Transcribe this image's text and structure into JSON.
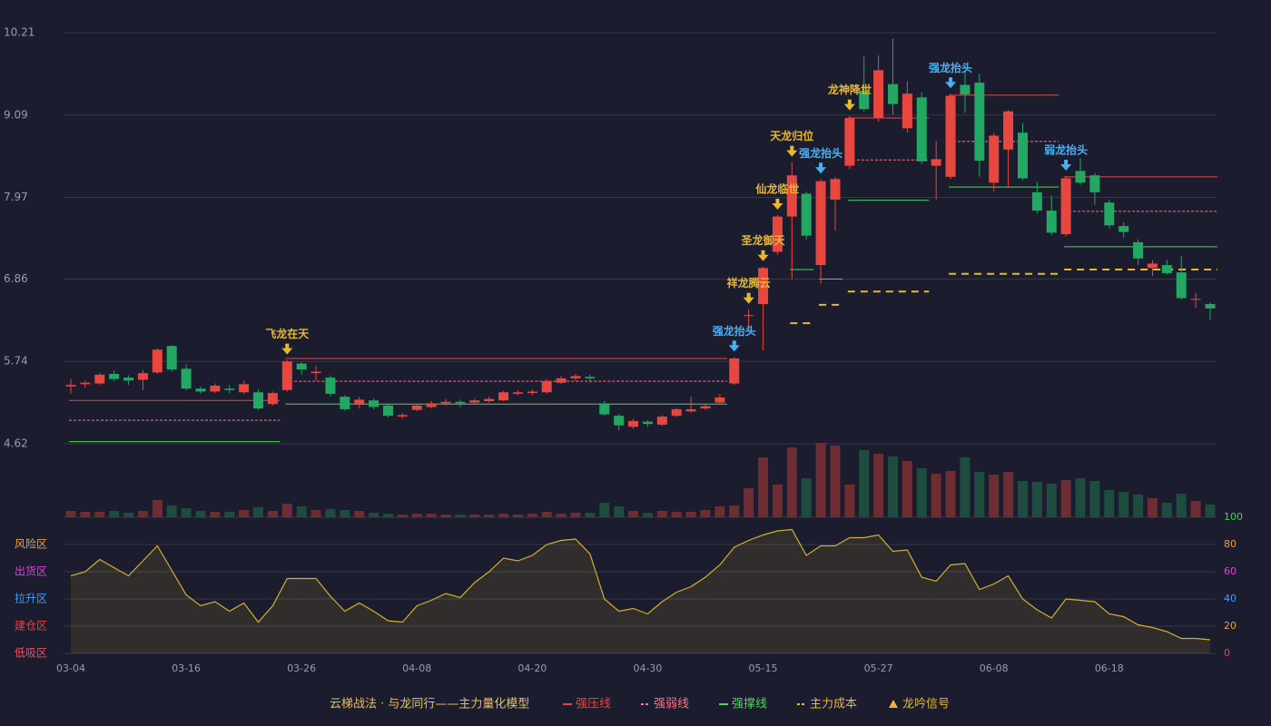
{
  "chart_data": {
    "type": "candlestick",
    "categories": [
      "03-04",
      null,
      null,
      null,
      null,
      null,
      null,
      null,
      "03-16",
      null,
      null,
      null,
      null,
      null,
      null,
      null,
      "03-26",
      null,
      null,
      null,
      null,
      null,
      null,
      null,
      "04-08",
      null,
      null,
      null,
      null,
      null,
      null,
      null,
      "04-20",
      null,
      null,
      null,
      null,
      null,
      null,
      null,
      "04-30",
      null,
      null,
      null,
      null,
      null,
      null,
      null,
      "05-15",
      null,
      null,
      null,
      null,
      null,
      null,
      null,
      "05-27",
      null,
      null,
      null,
      null,
      null,
      null,
      null,
      "06-08",
      null,
      null,
      null,
      null,
      null,
      null,
      null,
      "06-18",
      null,
      null,
      null,
      null,
      null,
      null,
      null
    ],
    "open": [
      5.4,
      5.43,
      5.44,
      5.57,
      5.52,
      5.49,
      5.59,
      5.95,
      5.64,
      5.37,
      5.33,
      5.37,
      5.32,
      5.32,
      5.16,
      5.35,
      5.71,
      5.58,
      5.52,
      5.26,
      5.15,
      5.21,
      5.14,
      4.99,
      5.08,
      5.12,
      5.17,
      5.19,
      5.18,
      5.2,
      5.21,
      5.3,
      5.31,
      5.32,
      5.45,
      5.51,
      5.53,
      5.17,
      5.0,
      4.85,
      4.92,
      4.88,
      5.0,
      5.06,
      5.1,
      5.18,
      5.44,
      6.36,
      6.52,
      7.23,
      7.71,
      8.02,
      7.05,
      7.94,
      8.4,
      9.42,
      9.05,
      9.51,
      8.91,
      9.33,
      8.4,
      8.25,
      9.5,
      9.53,
      8.17,
      8.62,
      8.85,
      8.04,
      7.79,
      7.47,
      8.33,
      8.27,
      7.9,
      7.58,
      7.36,
      7.01,
      7.05,
      6.95,
      6.59,
      6.52
    ],
    "high": [
      5.5,
      5.48,
      5.58,
      5.62,
      5.55,
      5.62,
      5.92,
      5.96,
      5.7,
      5.4,
      5.44,
      5.42,
      5.48,
      5.36,
      5.33,
      5.76,
      5.73,
      5.68,
      5.55,
      5.28,
      5.26,
      5.24,
      5.16,
      5.04,
      5.16,
      5.2,
      5.23,
      5.22,
      5.23,
      5.26,
      5.34,
      5.35,
      5.36,
      5.5,
      5.54,
      5.57,
      5.56,
      5.2,
      5.03,
      4.96,
      4.94,
      5.01,
      5.11,
      5.26,
      5.16,
      5.3,
      5.8,
      6.45,
      7.03,
      7.73,
      8.45,
      8.05,
      8.22,
      8.25,
      9.08,
      9.89,
      9.9,
      10.13,
      9.55,
      9.4,
      8.74,
      9.38,
      9.7,
      9.65,
      8.85,
      9.16,
      8.98,
      8.18,
      8.0,
      8.26,
      8.5,
      8.3,
      7.94,
      7.63,
      7.4,
      7.12,
      7.12,
      7.17,
      6.67,
      6.54
    ],
    "low": [
      5.3,
      5.38,
      5.42,
      5.47,
      5.42,
      5.35,
      5.57,
      5.6,
      5.35,
      5.3,
      5.31,
      5.31,
      5.3,
      5.08,
      5.14,
      5.33,
      5.56,
      5.48,
      5.26,
      5.07,
      5.1,
      5.09,
      4.98,
      4.96,
      5.06,
      5.1,
      5.14,
      5.12,
      5.16,
      5.18,
      5.2,
      5.28,
      5.28,
      5.3,
      5.43,
      5.48,
      5.45,
      5.0,
      4.8,
      4.82,
      4.85,
      4.86,
      4.98,
      5.04,
      5.08,
      5.16,
      5.42,
      6.15,
      5.89,
      7.19,
      6.86,
      7.4,
      6.8,
      7.52,
      8.35,
      9.14,
      9.0,
      9.1,
      8.85,
      8.42,
      7.94,
      8.22,
      9.12,
      8.25,
      8.05,
      8.1,
      8.2,
      7.75,
      7.46,
      7.44,
      8.14,
      7.87,
      7.55,
      7.42,
      7.05,
      6.9,
      6.92,
      6.58,
      6.47,
      6.3
    ],
    "close": [
      5.42,
      5.45,
      5.56,
      5.5,
      5.48,
      5.58,
      5.9,
      5.63,
      5.37,
      5.33,
      5.41,
      5.35,
      5.43,
      5.1,
      5.31,
      5.74,
      5.63,
      5.6,
      5.3,
      5.09,
      5.22,
      5.12,
      5.0,
      5.01,
      5.14,
      5.17,
      5.19,
      5.17,
      5.21,
      5.23,
      5.32,
      5.32,
      5.33,
      5.47,
      5.51,
      5.54,
      5.51,
      5.02,
      4.87,
      4.93,
      4.89,
      4.99,
      5.09,
      5.09,
      5.13,
      5.25,
      5.78,
      6.37,
      7.01,
      7.71,
      8.27,
      7.45,
      8.19,
      8.22,
      9.05,
      9.17,
      9.7,
      9.24,
      9.38,
      8.46,
      8.49,
      9.35,
      9.37,
      8.47,
      8.81,
      9.14,
      8.23,
      7.79,
      7.49,
      8.23,
      8.17,
      8.04,
      7.59,
      7.5,
      7.14,
      7.07,
      6.94,
      6.6,
      6.59,
      6.46
    ],
    "up_color": "#e8473f",
    "down_color": "#22a862",
    "ylim": [
      4.62,
      10.21
    ],
    "yticks": [
      4.62,
      5.74,
      6.86,
      7.97,
      9.09,
      10.21
    ],
    "grid": true,
    "levels": [
      {
        "name": "强压线",
        "color": "#e8473f",
        "dash": false,
        "segments": [
          {
            "start": 0,
            "end": 14,
            "value": 5.21
          },
          {
            "start": 15,
            "end": 45,
            "value": 5.78
          },
          {
            "start": 54,
            "end": 59,
            "value": 9.05
          },
          {
            "start": 61,
            "end": 68,
            "value": 9.36
          },
          {
            "start": 69,
            "end": 79,
            "value": 8.25
          }
        ]
      },
      {
        "name": "强弱线",
        "color": "#f07a8a",
        "dash": true,
        "segments": [
          {
            "start": 0,
            "end": 14,
            "value": 4.94
          },
          {
            "start": 15,
            "end": 45,
            "value": 5.47
          },
          {
            "start": 54,
            "end": 59,
            "value": 8.48
          },
          {
            "start": 61,
            "end": 68,
            "value": 8.73
          },
          {
            "start": 69,
            "end": 79,
            "value": 7.78
          }
        ]
      },
      {
        "name": "强撑线",
        "color": "#4cd65a",
        "dash": false,
        "segments": [
          {
            "start": 0,
            "end": 14,
            "value": 4.65
          },
          {
            "start": 15,
            "end": 45,
            "value": 5.16
          },
          {
            "start": 50,
            "end": 51,
            "value": 6.99
          },
          {
            "start": 52,
            "end": 53,
            "value": 6.86
          },
          {
            "start": 54,
            "end": 59,
            "value": 7.93
          },
          {
            "start": 61,
            "end": 68,
            "value": 8.11
          },
          {
            "start": 69,
            "end": 79,
            "value": 7.3
          }
        ]
      },
      {
        "name": "主力成本",
        "color": "#e8b830",
        "dash": true,
        "segments": [
          {
            "start": 50,
            "end": 51,
            "value": 6.26
          },
          {
            "start": 52,
            "end": 53,
            "value": 6.51
          },
          {
            "start": 54,
            "end": 59,
            "value": 6.69
          },
          {
            "start": 61,
            "end": 68,
            "value": 6.93
          },
          {
            "start": 69,
            "end": 79,
            "value": 6.99
          }
        ]
      }
    ],
    "signal_name": "龙吟信号",
    "signal_color": "#e8b830",
    "signals": [
      {
        "index": 15,
        "label": "飞龙在天",
        "color": "#e8b830"
      },
      {
        "index": 46,
        "label": "强龙抬头",
        "color": "#4ab0f5"
      },
      {
        "index": 47,
        "label": "祥龙腾云",
        "color": "#e8b830"
      },
      {
        "index": 48,
        "label": "圣龙御天",
        "color": "#e8b830"
      },
      {
        "index": 49,
        "label": "仙龙临世",
        "color": "#e8b830"
      },
      {
        "index": 50,
        "label": "天龙归位",
        "color": "#e8b830"
      },
      {
        "index": 52,
        "label": "强龙抬头",
        "color": "#4ab0f5"
      },
      {
        "index": 54,
        "label": "龙神降世",
        "color": "#e8b830"
      },
      {
        "index": 61,
        "label": "强龙抬头",
        "color": "#4ab0f5"
      },
      {
        "index": 69,
        "label": "弱龙抬头",
        "color": "#4ab0f5"
      }
    ],
    "volume": {
      "values": [
        7,
        6,
        6,
        7,
        5,
        7,
        19,
        13,
        10,
        7,
        6,
        6,
        8,
        11,
        7,
        15,
        12,
        8,
        9,
        8,
        7,
        5,
        4,
        3,
        4,
        4,
        3,
        3,
        3,
        3,
        4,
        3,
        4,
        6,
        4,
        5,
        5,
        16,
        12,
        7,
        5,
        7,
        6,
        6,
        8,
        12,
        13,
        32,
        66,
        36,
        77,
        43,
        82,
        79,
        36,
        74,
        70,
        67,
        62,
        54,
        48,
        51,
        66,
        50,
        47,
        50,
        40,
        39,
        37,
        41,
        43,
        40,
        30,
        28,
        25,
        21,
        16,
        26,
        18,
        14
      ],
      "up_color": "#6e2c33",
      "down_color": "#1e4d3f"
    },
    "indicator": {
      "ylim": [
        0,
        100
      ],
      "yticks": [
        0,
        20,
        40,
        60,
        80,
        100
      ],
      "ytick_colors": [
        "#f04040",
        "#f0a040",
        "#4a9af0",
        "#e040e0",
        "#f0a040",
        "#3fd06a"
      ],
      "zones": [
        {
          "label": "风险区",
          "value": 80,
          "color": "#f0a040"
        },
        {
          "label": "出货区",
          "value": 60,
          "color": "#e040e0"
        },
        {
          "label": "拉升区",
          "value": 40,
          "color": "#4a9af0"
        },
        {
          "label": "建仓区",
          "value": 20,
          "color": "#f04040"
        },
        {
          "label": "低吸区",
          "value": 0,
          "color": "#f05060"
        }
      ],
      "color": "#d4b02a",
      "values": [
        57,
        60,
        69,
        63,
        57,
        68,
        79,
        61,
        43,
        35,
        38,
        31,
        37,
        23,
        35,
        55,
        55,
        55,
        42,
        31,
        37,
        31,
        24,
        23,
        35,
        39,
        44,
        41,
        52,
        60,
        70,
        68,
        72,
        80,
        83,
        84,
        73,
        40,
        31,
        33,
        29,
        38,
        45,
        49,
        56,
        65,
        78,
        83,
        87,
        90,
        91,
        72,
        79,
        79,
        85,
        85,
        87,
        75,
        76,
        56,
        53,
        65,
        66,
        47,
        51,
        57,
        40,
        32,
        26,
        40,
        39,
        38,
        29,
        27,
        21,
        19,
        16,
        11,
        11,
        10
      ]
    },
    "legend_title": "云梯战法 · 与龙同行——主力量化模型"
  }
}
